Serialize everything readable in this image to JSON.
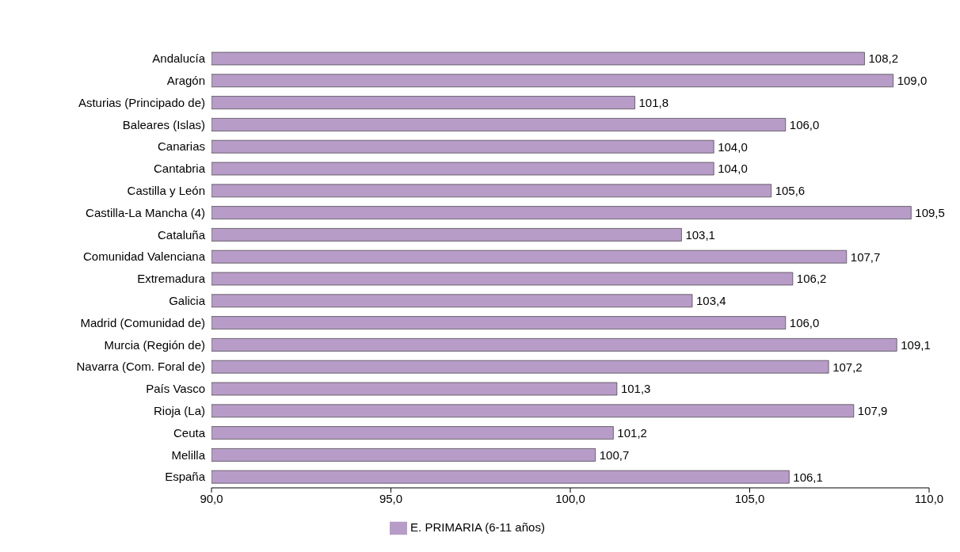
{
  "chart_data": {
    "type": "bar",
    "orientation": "horizontal",
    "categories": [
      "Andalucía",
      "Aragón",
      "Asturias (Principado de)",
      "Baleares (Islas)",
      "Canarias",
      "Cantabria",
      "Castilla y León",
      "Castilla-La Mancha (4)",
      "Cataluña",
      "Comunidad Valenciana",
      "Extremadura",
      "Galicia",
      "Madrid (Comunidad de)",
      "Murcia (Región de)",
      "Navarra (Com. Foral de)",
      "País Vasco",
      "Rioja (La)",
      "Ceuta",
      "Melilla",
      "España"
    ],
    "series": [
      {
        "name": "E. PRIMARIA (6-11 años)",
        "color": "#b89cc8",
        "values": [
          108.2,
          109.0,
          101.8,
          106.0,
          104.0,
          104.0,
          105.6,
          109.5,
          103.1,
          107.7,
          106.2,
          103.4,
          106.0,
          109.1,
          107.2,
          101.3,
          107.9,
          101.2,
          100.7,
          106.1
        ],
        "value_labels": [
          "108,2",
          "109,0",
          "101,8",
          "106,0",
          "104,0",
          "104,0",
          "105,6",
          "109,5",
          "103,1",
          "107,7",
          "106,2",
          "103,4",
          "106,0",
          "109,1",
          "107,2",
          "101,3",
          "107,9",
          "101,2",
          "100,7",
          "106,1"
        ]
      }
    ],
    "xlim": [
      90,
      110
    ],
    "xticks": [
      {
        "value": 90,
        "label": "90,0"
      },
      {
        "value": 95,
        "label": "95,0"
      },
      {
        "value": 100,
        "label": "100,0"
      },
      {
        "value": 105,
        "label": "105,0"
      },
      {
        "value": 110,
        "label": "110,0"
      }
    ],
    "grid": false,
    "legend": "bottom"
  }
}
